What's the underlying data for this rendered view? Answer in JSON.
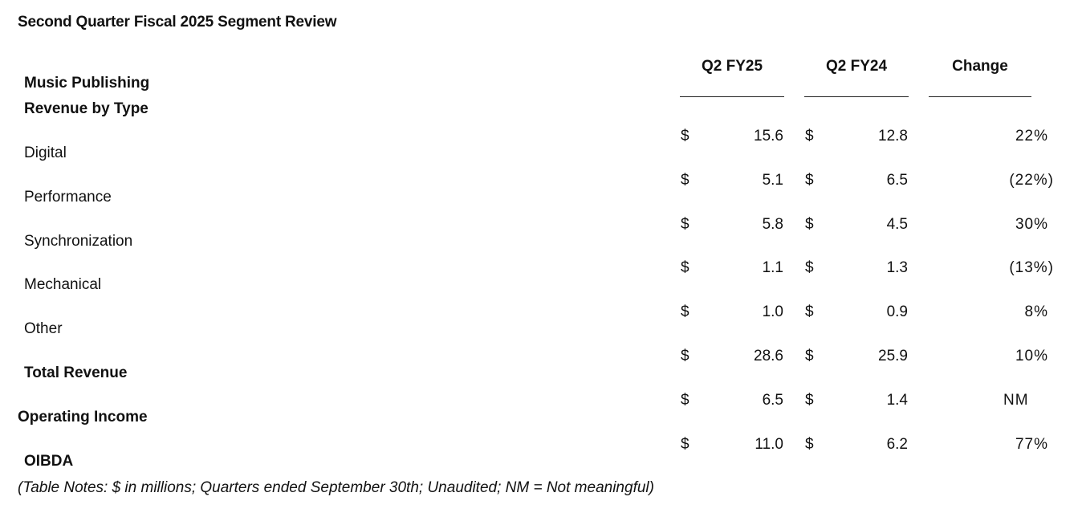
{
  "title": "Second Quarter Fiscal 2025 Segment Review",
  "columns": {
    "current": "Q2 FY25",
    "prior": "Q2 FY24",
    "change": "Change"
  },
  "section": {
    "line1": "Music Publishing",
    "line2": "Revenue by Type"
  },
  "currency_symbol": "$",
  "rows": [
    {
      "label": "Digital",
      "bold": false,
      "current": "15.6",
      "prior": "12.8",
      "change": "22%"
    },
    {
      "label": "Performance",
      "bold": false,
      "current": "5.1",
      "prior": "6.5",
      "change": "(22%)"
    },
    {
      "label": "Synchronization",
      "bold": false,
      "current": "5.8",
      "prior": "4.5",
      "change": "30%"
    },
    {
      "label": "Mechanical",
      "bold": false,
      "current": "1.1",
      "prior": "1.3",
      "change": "(13%)"
    },
    {
      "label": "Other",
      "bold": false,
      "current": "1.0",
      "prior": "0.9",
      "change": "8%"
    },
    {
      "label": "Total Revenue",
      "bold": true,
      "current": "28.6",
      "prior": "25.9",
      "change": "10%"
    },
    {
      "label": "Operating Income",
      "bold": true,
      "current": "6.5",
      "prior": "1.4",
      "change": "NM"
    },
    {
      "label": "OIBDA",
      "bold": true,
      "current": "11.0",
      "prior": "6.2",
      "change": "77%"
    }
  ],
  "note": "(Table Notes: $ in millions; Quarters ended September 30th; Unaudited; NM = Not meaningful)"
}
